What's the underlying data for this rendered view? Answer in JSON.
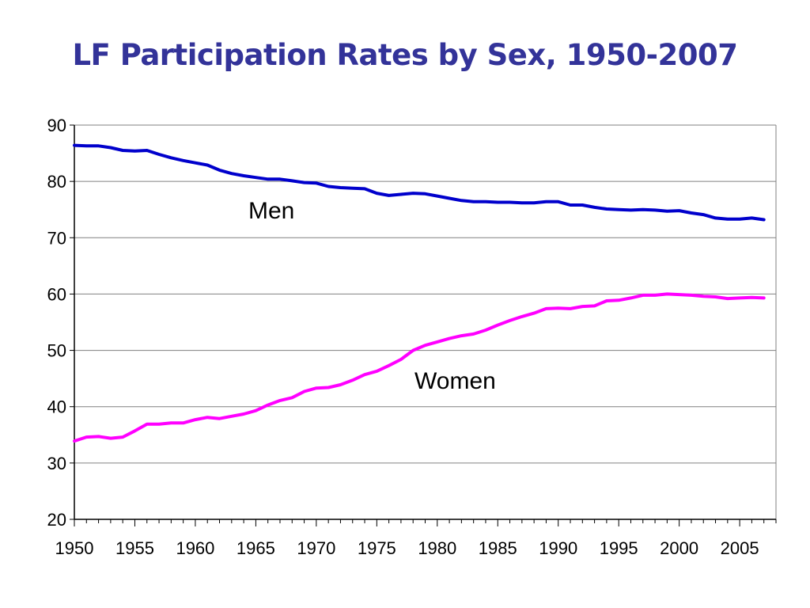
{
  "title": "LF Participation Rates by Sex, 1950-2007",
  "colors": {
    "men": "#0000cc",
    "women": "#ff00ff",
    "title": "#333399",
    "grid": "#808080"
  },
  "chart_data": {
    "type": "line",
    "title": "LF Participation Rates by Sex, 1950-2007",
    "xlabel": "",
    "ylabel": "",
    "xlim": [
      1950,
      2008
    ],
    "ylim": [
      20,
      90
    ],
    "yticks": [
      20,
      30,
      40,
      50,
      60,
      70,
      80,
      90
    ],
    "xticks": [
      1950,
      1955,
      1960,
      1965,
      1970,
      1975,
      1980,
      1985,
      1990,
      1995,
      2000,
      2005
    ],
    "grid": true,
    "legend": "none",
    "x": [
      1950,
      1951,
      1952,
      1953,
      1954,
      1955,
      1956,
      1957,
      1958,
      1959,
      1960,
      1961,
      1962,
      1963,
      1964,
      1965,
      1966,
      1967,
      1968,
      1969,
      1970,
      1971,
      1972,
      1973,
      1974,
      1975,
      1976,
      1977,
      1978,
      1979,
      1980,
      1981,
      1982,
      1983,
      1984,
      1985,
      1986,
      1987,
      1988,
      1989,
      1990,
      1991,
      1992,
      1993,
      1994,
      1995,
      1996,
      1997,
      1998,
      1999,
      2000,
      2001,
      2002,
      2003,
      2004,
      2005,
      2006,
      2007
    ],
    "series": [
      {
        "name": "Men",
        "color": "#0000cc",
        "values": [
          86.4,
          86.3,
          86.3,
          86.0,
          85.5,
          85.4,
          85.5,
          84.8,
          84.2,
          83.7,
          83.3,
          82.9,
          82.0,
          81.4,
          81.0,
          80.7,
          80.4,
          80.4,
          80.1,
          79.8,
          79.7,
          79.1,
          78.9,
          78.8,
          78.7,
          77.9,
          77.5,
          77.7,
          77.9,
          77.8,
          77.4,
          77.0,
          76.6,
          76.4,
          76.4,
          76.3,
          76.3,
          76.2,
          76.2,
          76.4,
          76.4,
          75.8,
          75.8,
          75.4,
          75.1,
          75.0,
          74.9,
          75.0,
          74.9,
          74.7,
          74.8,
          74.4,
          74.1,
          73.5,
          73.3,
          73.3,
          73.5,
          73.2
        ]
      },
      {
        "name": "Women",
        "color": "#ff00ff",
        "values": [
          33.9,
          34.6,
          34.7,
          34.4,
          34.6,
          35.7,
          36.9,
          36.9,
          37.1,
          37.1,
          37.7,
          38.1,
          37.9,
          38.3,
          38.7,
          39.3,
          40.3,
          41.1,
          41.6,
          42.7,
          43.3,
          43.4,
          43.9,
          44.7,
          45.7,
          46.3,
          47.3,
          48.4,
          50.0,
          50.9,
          51.5,
          52.1,
          52.6,
          52.9,
          53.6,
          54.5,
          55.3,
          56.0,
          56.6,
          57.4,
          57.5,
          57.4,
          57.8,
          57.9,
          58.8,
          58.9,
          59.3,
          59.8,
          59.8,
          60.0,
          59.9,
          59.8,
          59.6,
          59.5,
          59.2,
          59.3,
          59.4,
          59.3
        ]
      }
    ]
  },
  "annotations": {
    "men": "Men",
    "women": "Women"
  }
}
